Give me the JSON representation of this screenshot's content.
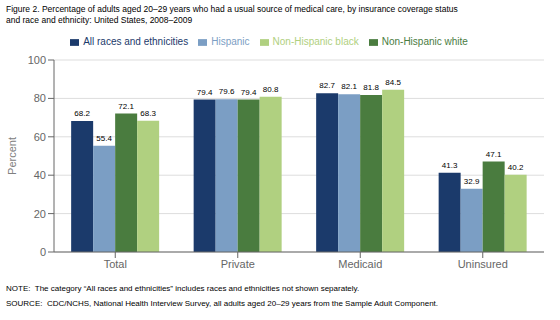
{
  "chart_data": {
    "type": "bar",
    "title": "Figure 2. Percentage of adults aged 20–29 years who had a usual source of medical care, by insurance coverage status",
    "subtitle": "and race and ethnicity: United States, 2008–2009",
    "categories": [
      "Total",
      "Private",
      "Medicaid",
      "Uninsured"
    ],
    "series": [
      {
        "name": "All races and ethnicities",
        "color": "#1b3a6b",
        "values": [
          68.2,
          79.4,
          82.7,
          41.3
        ]
      },
      {
        "name": "Hispanic",
        "color": "#7b9ec4",
        "values": [
          55.4,
          79.6,
          82.1,
          32.9
        ]
      },
      {
        "name": "Non-Hispanic white",
        "color": "#4a7c3f",
        "values": [
          72.1,
          79.4,
          81.8,
          47.1
        ]
      },
      {
        "name": "Non-Hispanic black",
        "color": "#b0d080",
        "values": [
          68.3,
          80.8,
          84.5,
          40.2
        ]
      }
    ],
    "y_label": "Percent",
    "ylim": [
      0,
      100
    ],
    "yticks": [
      0,
      20,
      40,
      60,
      80,
      100
    ],
    "grid": true,
    "legend": "top",
    "data_labels": true,
    "annotations": [
      "NOTE:  The category “All races and ethnicities” includes races and ethnicities not shown separately.",
      "SOURCE:  CDC/NCHS, National Health Interview Survey, all adults aged 20–29 years from the Sample Adult Component."
    ]
  }
}
